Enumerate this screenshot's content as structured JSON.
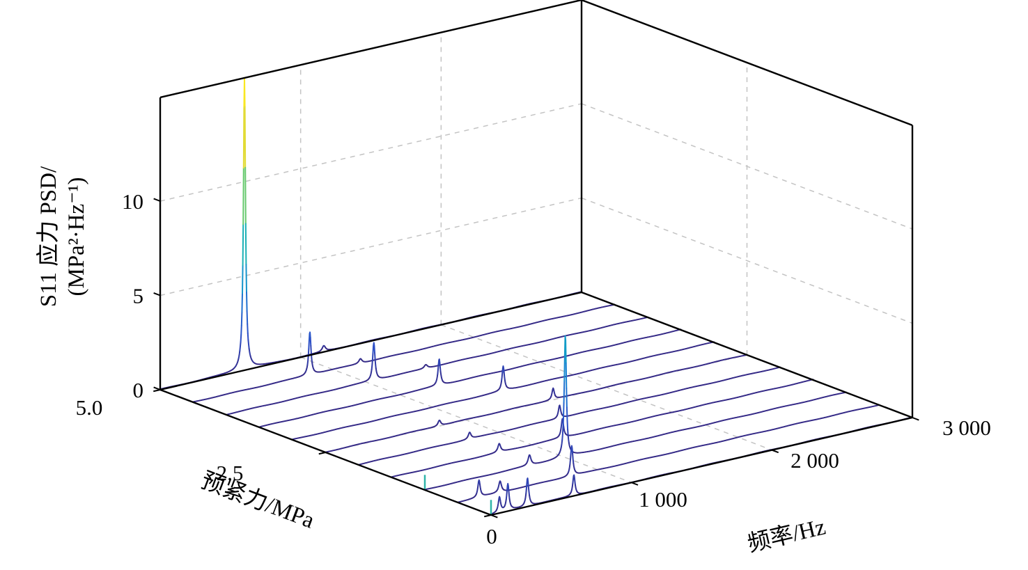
{
  "figure": {
    "background": "#ffffff",
    "box_color": "#000000",
    "grid_color": "#c3c3c3",
    "tick_font_px": 31
  },
  "chart_data": {
    "type": "line",
    "projection": "3d-waterfall",
    "title": "",
    "xlabel": "频率/Hz",
    "ylabel": "预紧力/MPa",
    "zlabel_line1": "S11 应力 PSD/",
    "zlabel_line2": "(MPa²·Hz⁻¹)",
    "xlim": [
      0,
      3000
    ],
    "ylim": [
      0,
      5
    ],
    "zlim": [
      0,
      15.5
    ],
    "grid": true,
    "legend": "none",
    "x_ticks": [
      {
        "value": 0,
        "label": "0"
      },
      {
        "value": 1000,
        "label": "1 000"
      },
      {
        "value": 2000,
        "label": "2 000"
      },
      {
        "value": 3000,
        "label": "3 000"
      }
    ],
    "y_ticks": [
      {
        "value": 5.0,
        "label": "5.0"
      },
      {
        "value": 2.5,
        "label": "2.5"
      }
    ],
    "z_ticks": [
      {
        "value": 0,
        "label": "0"
      },
      {
        "value": 5,
        "label": "5"
      },
      {
        "value": 10,
        "label": "10"
      }
    ],
    "series_color_by": "amplitude",
    "line_base_color": "#352a87",
    "marker_color": "#2fb4a8",
    "colormap": [
      [
        0.0,
        "#352a87"
      ],
      [
        0.13,
        "#2d50c8"
      ],
      [
        0.3,
        "#1a7fd4"
      ],
      [
        0.45,
        "#0fa8c2"
      ],
      [
        0.6,
        "#2fbf9b"
      ],
      [
        0.75,
        "#8ed04c"
      ],
      [
        0.88,
        "#dbd83a"
      ],
      [
        1.0,
        "#f9e721"
      ]
    ],
    "peak_model": "lorentzian",
    "series": [
      {
        "preload": 5.0,
        "peaks": [
          {
            "f": 600,
            "a": 15.5,
            "w": 9
          },
          {
            "f": 1165,
            "a": 0.3,
            "w": 14
          }
        ],
        "f0_marker": false
      },
      {
        "preload": 4.5,
        "peaks": [
          {
            "f": 830,
            "a": 2.3,
            "w": 10
          },
          {
            "f": 1190,
            "a": 0.25,
            "w": 14
          }
        ],
        "f0_marker": false
      },
      {
        "preload": 4.0,
        "peaks": [
          {
            "f": 1050,
            "a": 2.0,
            "w": 10
          },
          {
            "f": 1420,
            "a": 0.2,
            "w": 14
          }
        ],
        "f0_marker": false
      },
      {
        "preload": 3.5,
        "peaks": [
          {
            "f": 1280,
            "a": 1.4,
            "w": 10
          }
        ],
        "f0_marker": false
      },
      {
        "preload": 3.0,
        "peaks": [
          {
            "f": 1500,
            "a": 1.3,
            "w": 10
          }
        ],
        "f0_marker": false
      },
      {
        "preload": 2.5,
        "peaks": [
          {
            "f": 1620,
            "a": 0.6,
            "w": 10
          },
          {
            "f": 810,
            "a": 0.3,
            "w": 12
          }
        ],
        "f0_marker": false
      },
      {
        "preload": 2.0,
        "peaks": [
          {
            "f": 1430,
            "a": 0.7,
            "w": 10
          },
          {
            "f": 790,
            "a": 0.35,
            "w": 12
          }
        ],
        "f0_marker": false
      },
      {
        "preload": 1.5,
        "peaks": [
          {
            "f": 1215,
            "a": 1.0,
            "w": 10
          },
          {
            "f": 765,
            "a": 0.45,
            "w": 12
          }
        ],
        "f0_marker": false
      },
      {
        "preload": 1.0,
        "peaks": [
          {
            "f": 1000,
            "a": 6.5,
            "w": 9
          },
          {
            "f": 745,
            "a": 0.55,
            "w": 12
          }
        ],
        "f0_marker": true
      },
      {
        "preload": 0.5,
        "peaks": [
          {
            "f": 810,
            "a": 1.6,
            "w": 10
          },
          {
            "f": 300,
            "a": 0.6,
            "w": 12
          },
          {
            "f": 150,
            "a": 0.9,
            "w": 10
          }
        ],
        "f0_marker": false
      },
      {
        "preload": 0.0,
        "peaks": [
          {
            "f": 590,
            "a": 1.1,
            "w": 10
          },
          {
            "f": 260,
            "a": 1.5,
            "w": 10
          },
          {
            "f": 120,
            "a": 1.4,
            "w": 10
          },
          {
            "f": 60,
            "a": 0.8,
            "w": 10
          }
        ],
        "f0_marker": true
      }
    ]
  }
}
